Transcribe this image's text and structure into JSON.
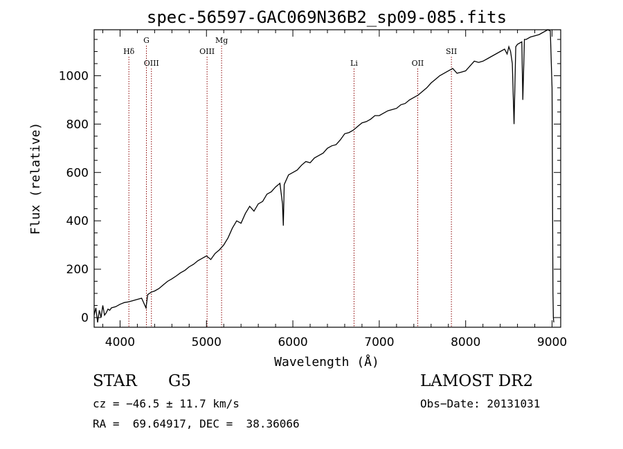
{
  "chart_data": {
    "type": "line",
    "title": "spec-56597-GAC069N36B2_sp09-085.fits",
    "xlabel": "Wavelength (Å)",
    "ylabel": "Flux (relative)",
    "xlim": [
      3700,
      9100
    ],
    "ylim": [
      -40,
      1190
    ],
    "x_ticks": [
      4000,
      5000,
      6000,
      7000,
      8000,
      9000
    ],
    "y_ticks": [
      0,
      200,
      400,
      600,
      800,
      1000
    ],
    "grid": false,
    "series": [
      {
        "color": "#000000",
        "x": [
          3700,
          3720,
          3740,
          3760,
          3780,
          3800,
          3820,
          3840,
          3860,
          3880,
          3900,
          3950,
          4000,
          4050,
          4100,
          4150,
          4200,
          4250,
          4300,
          4320,
          4340,
          4360,
          4400,
          4450,
          4500,
          4550,
          4600,
          4650,
          4700,
          4750,
          4800,
          4850,
          4900,
          4950,
          5000,
          5050,
          5100,
          5150,
          5200,
          5250,
          5300,
          5350,
          5400,
          5450,
          5500,
          5550,
          5600,
          5650,
          5700,
          5750,
          5800,
          5850,
          5880,
          5890,
          5900,
          5950,
          6000,
          6050,
          6100,
          6150,
          6200,
          6250,
          6300,
          6350,
          6400,
          6450,
          6500,
          6550,
          6600,
          6650,
          6700,
          6750,
          6800,
          6850,
          6900,
          6950,
          7000,
          7050,
          7100,
          7150,
          7200,
          7250,
          7300,
          7350,
          7400,
          7450,
          7500,
          7550,
          7600,
          7650,
          7700,
          7750,
          7800,
          7850,
          7900,
          7950,
          8000,
          8050,
          8100,
          8150,
          8200,
          8250,
          8300,
          8350,
          8400,
          8450,
          8480,
          8500,
          8520,
          8540,
          8560,
          8580,
          8600,
          8650,
          8662,
          8680,
          8700,
          8750,
          8800,
          8850,
          8900,
          8950,
          8980,
          9000,
          9010,
          9015,
          9020
        ],
        "y": [
          10,
          40,
          -20,
          30,
          0,
          50,
          10,
          20,
          35,
          30,
          40,
          45,
          55,
          62,
          65,
          70,
          75,
          80,
          40,
          95,
          100,
          105,
          110,
          120,
          135,
          150,
          160,
          172,
          185,
          195,
          210,
          220,
          235,
          245,
          255,
          240,
          265,
          280,
          300,
          330,
          370,
          400,
          390,
          430,
          460,
          440,
          470,
          480,
          510,
          520,
          540,
          555,
          470,
          380,
          550,
          590,
          600,
          610,
          630,
          645,
          640,
          660,
          670,
          680,
          700,
          710,
          715,
          735,
          760,
          765,
          775,
          790,
          805,
          810,
          820,
          835,
          835,
          845,
          855,
          860,
          865,
          880,
          885,
          900,
          910,
          920,
          935,
          950,
          970,
          985,
          1000,
          1010,
          1020,
          1030,
          1010,
          1015,
          1020,
          1040,
          1060,
          1055,
          1060,
          1070,
          1080,
          1090,
          1100,
          1110,
          1090,
          1120,
          1100,
          1050,
          800,
          1120,
          1130,
          1140,
          900,
          1150,
          1150,
          1160,
          1165,
          1170,
          1180,
          1190,
          1185,
          950,
          100,
          0,
          -20
        ]
      }
    ],
    "lines": [
      {
        "label": "Hδ",
        "x": 4102,
        "tier": 2
      },
      {
        "label": "G",
        "x": 4305,
        "tier": 1
      },
      {
        "label": "OIII",
        "x": 4363,
        "tier": 3
      },
      {
        "label": "OIII",
        "x": 5007,
        "tier": 2
      },
      {
        "label": "Mg",
        "x": 5175,
        "tier": 1
      },
      {
        "label": "Li",
        "x": 6708,
        "tier": 3
      },
      {
        "label": "OII",
        "x": 7445,
        "tier": 3
      },
      {
        "label": "SII",
        "x": 7835,
        "tier": 2
      }
    ],
    "line_color": "#8b0000"
  },
  "info": {
    "object_class": "STAR",
    "subclass": "G5",
    "survey": "LAMOST DR2",
    "cz": "cz = −46.5 ± 11.7 km/s",
    "obs_date": "Obs−Date: 20131031",
    "coords": "RA =  69.64917, DEC =  38.36066"
  }
}
